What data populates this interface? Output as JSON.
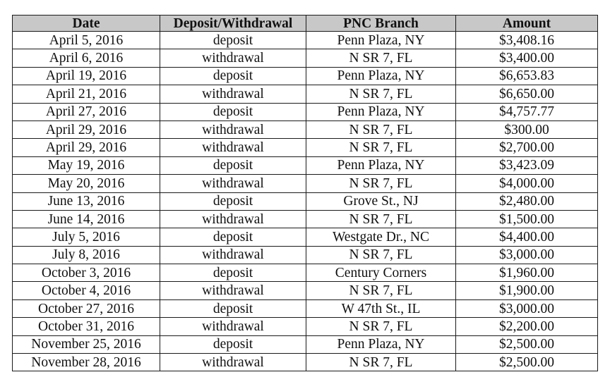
{
  "table": {
    "headers": [
      "Date",
      "Deposit/Withdrawal",
      "PNC Branch",
      "Amount"
    ],
    "rows": [
      [
        "April 5, 2016",
        "deposit",
        "Penn Plaza, NY",
        "$3,408.16"
      ],
      [
        "April 6, 2016",
        "withdrawal",
        "N SR 7, FL",
        "$3,400.00"
      ],
      [
        "April 19, 2016",
        "deposit",
        "Penn Plaza, NY",
        "$6,653.83"
      ],
      [
        "April 21, 2016",
        "withdrawal",
        "N SR 7, FL",
        "$6,650.00"
      ],
      [
        "April 27, 2016",
        "deposit",
        "Penn Plaza, NY",
        "$4,757.77"
      ],
      [
        "April 29, 2016",
        "withdrawal",
        "N SR 7, FL",
        "$300.00"
      ],
      [
        "April 29, 2016",
        "withdrawal",
        "N SR 7, FL",
        "$2,700.00"
      ],
      [
        "May 19, 2016",
        "deposit",
        "Penn Plaza, NY",
        "$3,423.09"
      ],
      [
        "May 20, 2016",
        "withdrawal",
        "N SR 7, FL",
        "$4,000.00"
      ],
      [
        "June 13, 2016",
        "deposit",
        "Grove St., NJ",
        "$2,480.00"
      ],
      [
        "June 14, 2016",
        "withdrawal",
        "N SR 7, FL",
        "$1,500.00"
      ],
      [
        "July 5, 2016",
        "deposit",
        "Westgate Dr., NC",
        "$4,400.00"
      ],
      [
        "July 8, 2016",
        "withdrawal",
        "N SR 7, FL",
        "$3,000.00"
      ],
      [
        "October 3, 2016",
        "deposit",
        "Century Corners",
        "$1,960.00"
      ],
      [
        "October 4, 2016",
        "withdrawal",
        "N SR 7, FL",
        "$1,900.00"
      ],
      [
        "October 27, 2016",
        "deposit",
        "W 47th St., IL",
        "$3,000.00"
      ],
      [
        "October 31, 2016",
        "withdrawal",
        "N SR 7, FL",
        "$2,200.00"
      ],
      [
        "November 25, 2016",
        "deposit",
        "Penn Plaza, NY",
        "$2,500.00"
      ],
      [
        "November 28, 2016",
        "withdrawal",
        "N SR 7, FL",
        "$2,500.00"
      ]
    ]
  },
  "style": {
    "header_background": "#c8c8c8",
    "border_color": "#1a1a1a"
  }
}
